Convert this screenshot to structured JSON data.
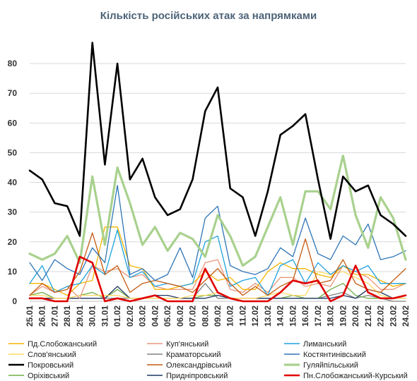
{
  "chart_data": {
    "type": "line",
    "title": "Кількість російських атак за напрямками",
    "ylim": [
      0,
      90
    ],
    "yticks": [
      0,
      10,
      20,
      30,
      40,
      50,
      60,
      70,
      80
    ],
    "grid": "horizontal",
    "legend_position": "bottom",
    "x": [
      "25.01",
      "26.01",
      "27.01",
      "28.01",
      "29.01",
      "30.01",
      "31.01",
      "01.02",
      "02.02",
      "03.02",
      "04.02",
      "05.02",
      "06.02",
      "07.02",
      "08.02",
      "09.02",
      "10.02",
      "11.02",
      "12.02",
      "13.02",
      "14.02",
      "15.02",
      "16.02",
      "17.02",
      "18.02",
      "19.02",
      "20.02",
      "21.02",
      "22.02",
      "23.02",
      "24.02"
    ],
    "series": [
      {
        "name": "Пд.Слобожанський",
        "color": "#f4b400",
        "width": 1.3,
        "values": [
          6,
          6,
          4,
          2,
          6,
          7,
          25,
          25,
          12,
          11,
          4,
          4,
          5,
          6,
          10,
          7,
          8,
          4,
          4,
          10,
          13,
          11,
          11,
          9,
          8,
          12,
          9,
          9,
          7,
          5,
          6
        ]
      },
      {
        "name": "Куп'янський",
        "color": "#e9967a",
        "width": 1.3,
        "values": [
          2,
          5,
          3,
          5,
          1,
          12,
          10,
          11,
          8,
          9,
          5,
          4,
          4,
          4,
          13,
          14,
          4,
          3,
          6,
          3,
          8,
          8,
          5,
          6,
          5,
          12,
          10,
          8,
          4,
          4,
          6
        ]
      },
      {
        "name": "Лиманський",
        "color": "#1fa2dd",
        "width": 1.3,
        "values": [
          6,
          12,
          3,
          5,
          6,
          12,
          9,
          24,
          8,
          10,
          5,
          6,
          5,
          6,
          20,
          22,
          5,
          7,
          8,
          2,
          12,
          14,
          6,
          13,
          9,
          12,
          10,
          12,
          6,
          6,
          6
        ]
      },
      {
        "name": "Слов'янський",
        "color": "#ffd966",
        "width": 1.3,
        "values": [
          2,
          2,
          1,
          1,
          2,
          2,
          2,
          2,
          1,
          1,
          1,
          1,
          1,
          2,
          2,
          3,
          1,
          1,
          1,
          2,
          3,
          2,
          2,
          10,
          9,
          10,
          8,
          6,
          2,
          1,
          1
        ]
      },
      {
        "name": "Краматорський",
        "color": "#808080",
        "width": 1.3,
        "values": [
          1,
          1,
          1,
          1,
          1,
          1,
          1,
          1,
          1,
          1,
          1,
          1,
          1,
          1,
          6,
          1,
          1,
          1,
          1,
          1,
          1,
          1,
          1,
          1,
          2,
          3,
          1,
          2,
          1,
          0,
          0
        ]
      },
      {
        "name": "Костянтинівський",
        "color": "#2e75b6",
        "width": 1.3,
        "values": [
          13,
          7,
          14,
          11,
          9,
          18,
          13,
          39,
          9,
          11,
          7,
          9,
          18,
          8,
          28,
          32,
          12,
          10,
          9,
          11,
          18,
          15,
          28,
          16,
          14,
          22,
          19,
          26,
          14,
          15,
          17
        ]
      },
      {
        "name": "Покровський",
        "color": "#000000",
        "width": 2.6,
        "values": [
          44,
          41,
          33,
          32,
          22,
          87,
          46,
          80,
          41,
          48,
          35,
          29,
          31,
          41,
          64,
          72,
          38,
          35,
          22,
          37,
          56,
          59,
          63,
          41,
          21,
          42,
          37,
          39,
          29,
          26,
          22
        ]
      },
      {
        "name": "Олександрівський",
        "color": "#c55a11",
        "width": 1.3,
        "values": [
          2,
          6,
          3,
          4,
          10,
          23,
          9,
          12,
          3,
          6,
          7,
          6,
          5,
          3,
          7,
          11,
          6,
          2,
          5,
          2,
          5,
          7,
          21,
          6,
          7,
          14,
          6,
          4,
          3,
          7,
          11
        ]
      },
      {
        "name": "Гуляйпільський",
        "color": "#a9d18e",
        "width": 3.2,
        "values": [
          16,
          14,
          16,
          22,
          13,
          42,
          19,
          45,
          33,
          19,
          25,
          17,
          23,
          21,
          15,
          29,
          22,
          12,
          15,
          25,
          35,
          19,
          37,
          37,
          31,
          49,
          29,
          18,
          35,
          28,
          14
        ]
      },
      {
        "name": "Оріхівський",
        "color": "#70ad47",
        "width": 1.3,
        "values": [
          2,
          3,
          1,
          1,
          2,
          3,
          1,
          4,
          1,
          1,
          1,
          1,
          1,
          1,
          2,
          2,
          1,
          1,
          1,
          1,
          1,
          2,
          1,
          1,
          4,
          6,
          2,
          1,
          1,
          1,
          1
        ]
      },
      {
        "name": "Придніпровський",
        "color": "#1f3864",
        "width": 1.3,
        "values": [
          1,
          1,
          1,
          1,
          1,
          1,
          1,
          5,
          1,
          1,
          2,
          2,
          1,
          1,
          1,
          2,
          1,
          1,
          1,
          1,
          1,
          1,
          1,
          1,
          1,
          2,
          1,
          4,
          3,
          1,
          1
        ]
      },
      {
        "name": "Пн.Слобожанський-Курський",
        "color": "#e00000",
        "width": 2.6,
        "values": [
          1,
          1,
          0,
          0,
          15,
          13,
          0,
          1,
          0,
          1,
          2,
          0,
          0,
          0,
          11,
          3,
          1,
          0,
          0,
          0,
          3,
          7,
          6,
          7,
          0,
          2,
          12,
          3,
          1,
          1,
          2
        ]
      }
    ]
  }
}
